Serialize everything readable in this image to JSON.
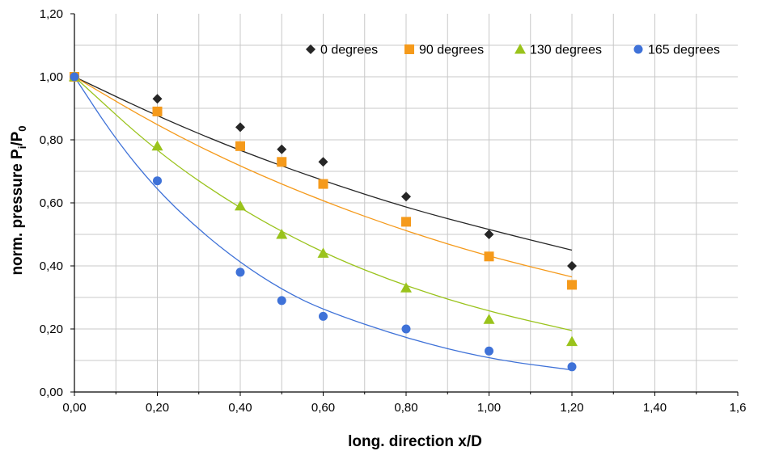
{
  "chart_data": {
    "type": "scatter",
    "xlabel": "long. direction x/D",
    "ylabel": {
      "prefix": "norm. pressure P",
      "sub1": "i",
      "slash": "/P",
      "sub2": "0"
    },
    "xlim": [
      0,
      1.6
    ],
    "ylim": [
      0,
      1.2
    ],
    "x_ticks": [
      "0,00",
      "0,20",
      "0,40",
      "0,60",
      "0,80",
      "1,00",
      "1,20",
      "1,40",
      "1,6"
    ],
    "y_ticks": [
      "0,00",
      "0,20",
      "0,40",
      "0,60",
      "0,80",
      "1,00",
      "1,20"
    ],
    "x_tick_values": [
      0,
      0.2,
      0.4,
      0.6,
      0.8,
      1.0,
      1.2,
      1.4,
      1.6
    ],
    "y_tick_values": [
      0,
      0.2,
      0.4,
      0.6,
      0.8,
      1.0,
      1.2
    ],
    "grid": true,
    "legend_position": "top-right",
    "series": [
      {
        "name": "0 degrees",
        "marker": "diamond",
        "color": "#262626",
        "x": [
          0.0,
          0.2,
          0.4,
          0.5,
          0.6,
          0.8,
          1.0,
          1.2
        ],
        "y": [
          1.0,
          0.93,
          0.84,
          0.77,
          0.73,
          0.62,
          0.5,
          0.4
        ],
        "trend": {
          "x": [
            0.0,
            0.2,
            0.4,
            0.6,
            0.8,
            1.0,
            1.2
          ],
          "y": [
            1.0,
            0.875,
            0.765,
            0.67,
            0.585,
            0.515,
            0.45
          ]
        }
      },
      {
        "name": "90 degrees",
        "marker": "square",
        "color": "#f59a1b",
        "x": [
          0.0,
          0.2,
          0.4,
          0.5,
          0.6,
          0.8,
          1.0,
          1.2
        ],
        "y": [
          1.0,
          0.89,
          0.78,
          0.73,
          0.66,
          0.54,
          0.43,
          0.34
        ],
        "trend": {
          "x": [
            0.0,
            0.2,
            0.4,
            0.6,
            0.8,
            1.0,
            1.2
          ],
          "y": [
            1.0,
            0.845,
            0.715,
            0.605,
            0.51,
            0.43,
            0.365
          ]
        }
      },
      {
        "name": "130 degrees",
        "marker": "triangle",
        "color": "#9ac31c",
        "x": [
          0.0,
          0.2,
          0.4,
          0.5,
          0.6,
          0.8,
          1.0,
          1.2
        ],
        "y": [
          1.0,
          0.78,
          0.59,
          0.5,
          0.44,
          0.33,
          0.23,
          0.16
        ],
        "trend": {
          "x": [
            0.0,
            0.2,
            0.4,
            0.6,
            0.8,
            1.0,
            1.2
          ],
          "y": [
            1.0,
            0.76,
            0.58,
            0.44,
            0.335,
            0.255,
            0.195
          ]
        }
      },
      {
        "name": "165 degrees",
        "marker": "circle",
        "color": "#3f72d8",
        "x": [
          0.0,
          0.2,
          0.4,
          0.5,
          0.6,
          0.8,
          1.0,
          1.2
        ],
        "y": [
          1.0,
          0.67,
          0.38,
          0.29,
          0.24,
          0.2,
          0.13,
          0.08
        ],
        "trend": {
          "x": [
            0.0,
            0.1,
            0.2,
            0.3,
            0.4,
            0.5,
            0.6,
            0.8,
            1.0,
            1.2
          ],
          "y": [
            1.0,
            0.8,
            0.64,
            0.515,
            0.41,
            0.325,
            0.26,
            0.17,
            0.105,
            0.07
          ]
        }
      }
    ]
  }
}
